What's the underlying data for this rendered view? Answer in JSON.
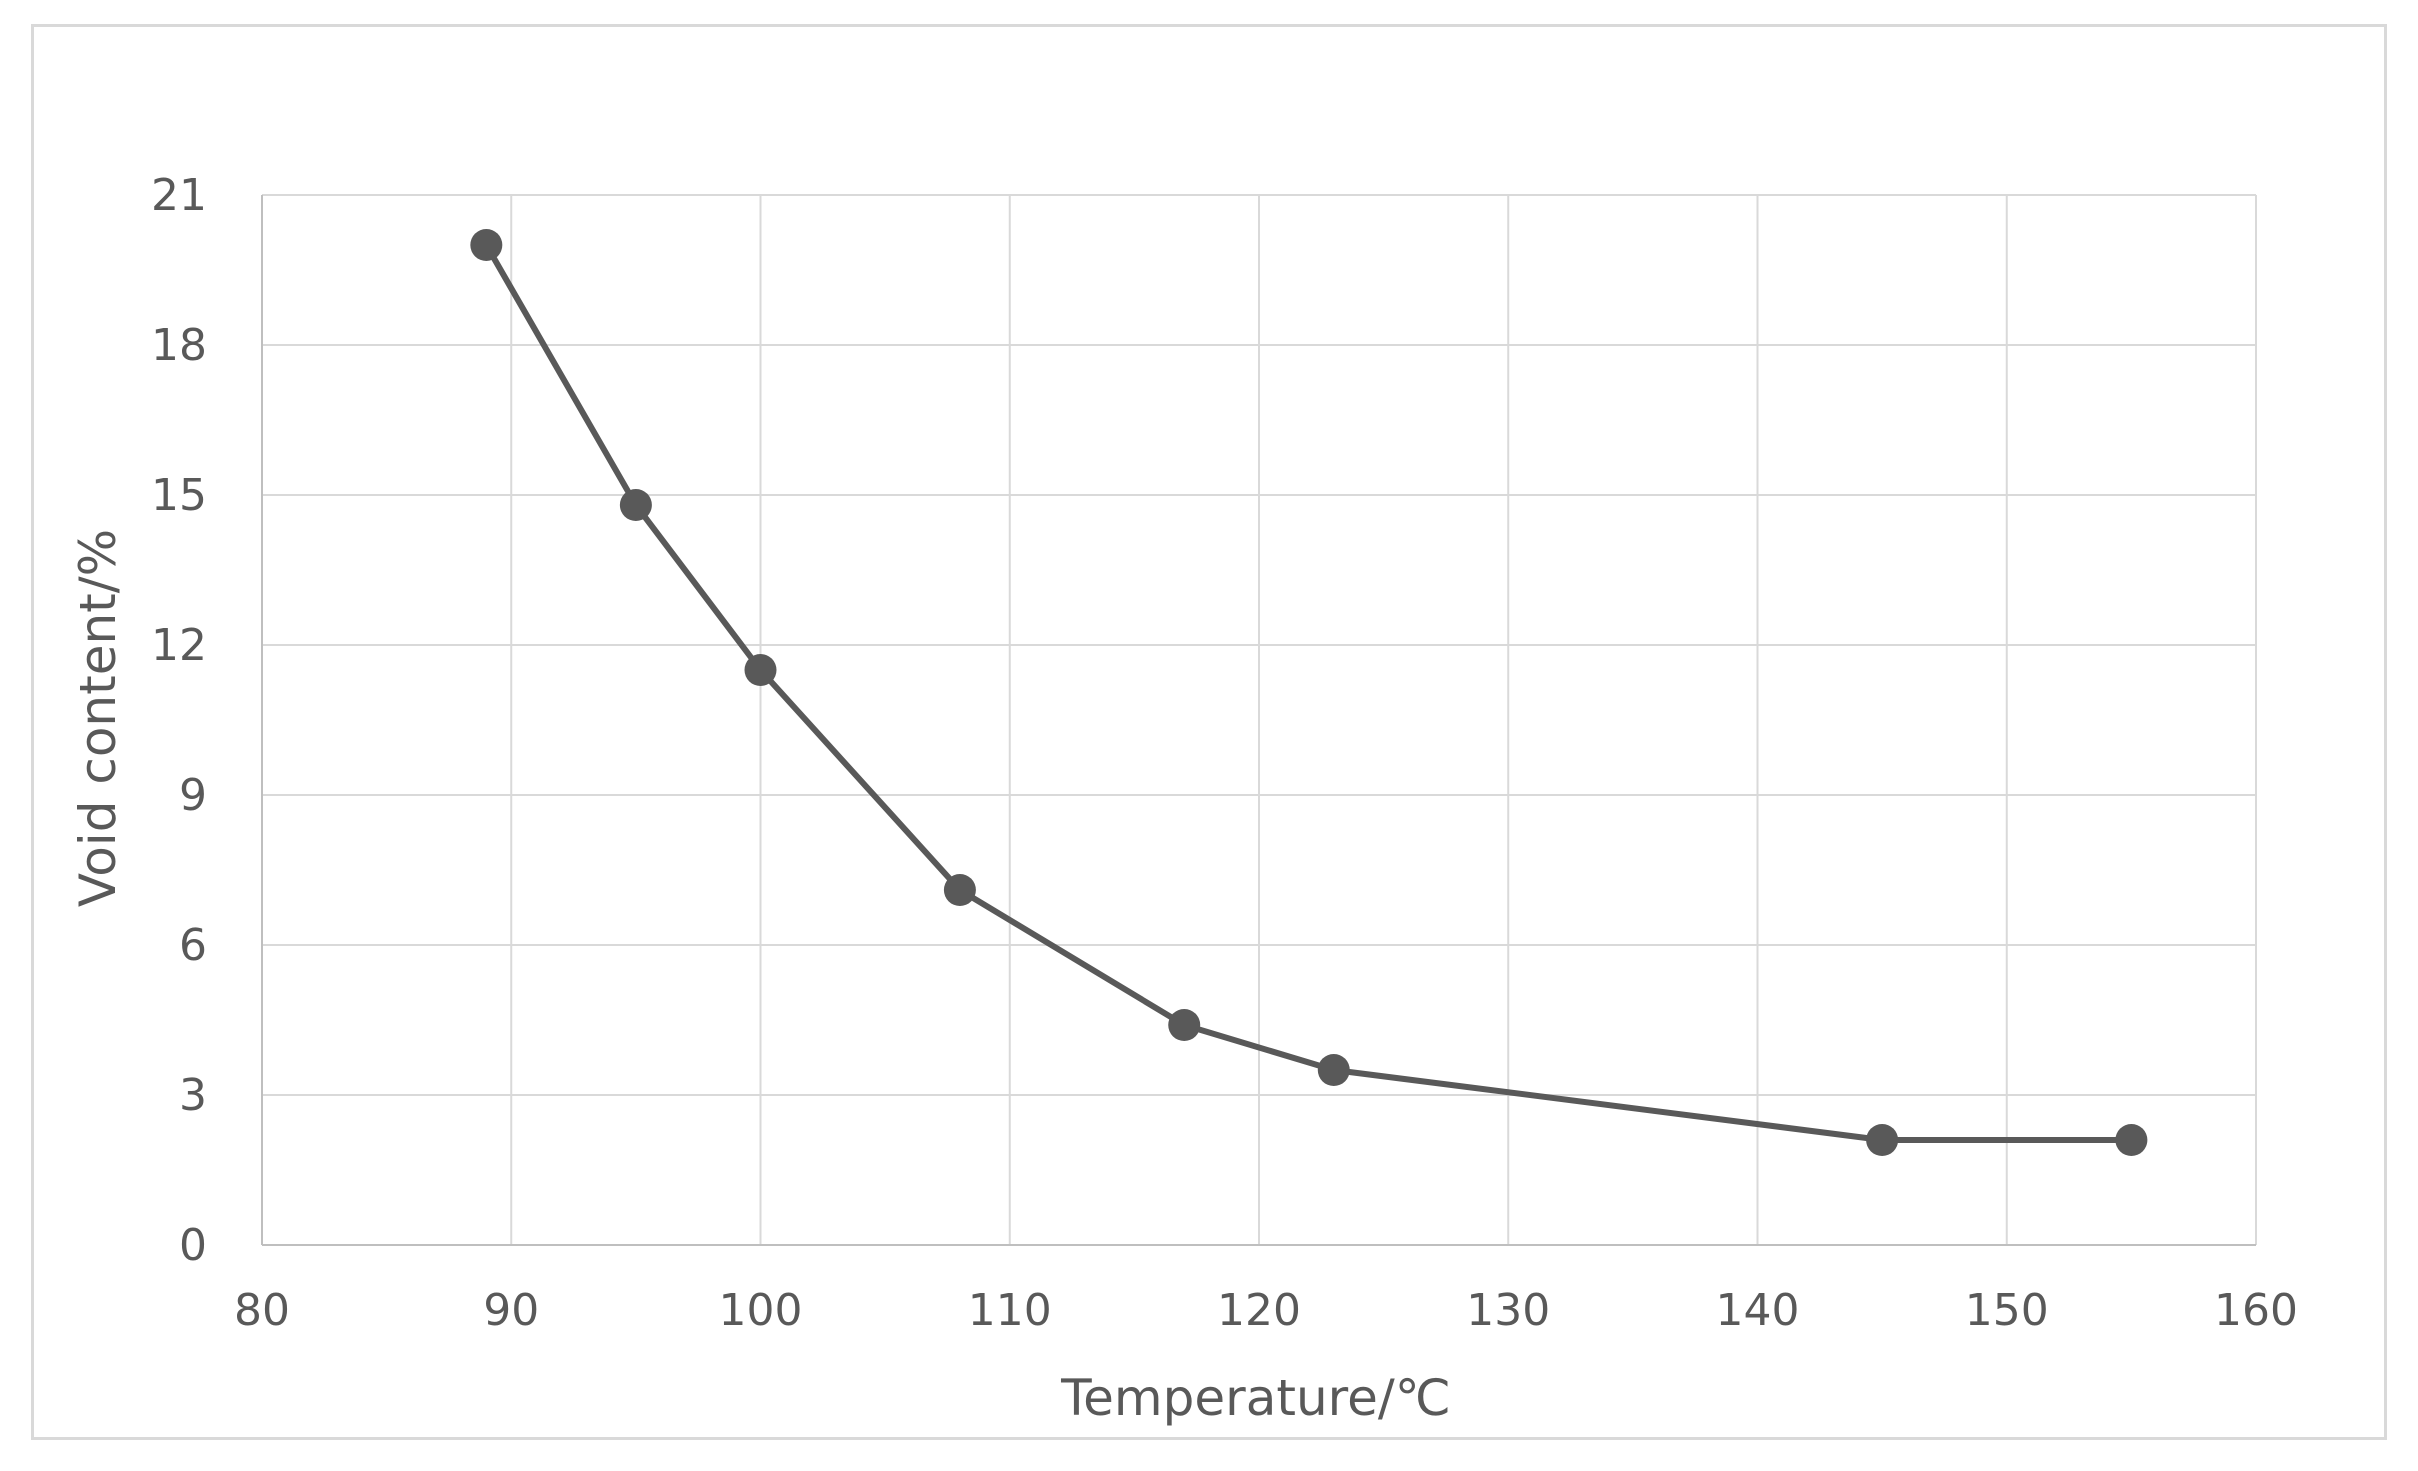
{
  "chart_data": {
    "type": "line",
    "xlabel": "Temperature/℃",
    "ylabel": "Void content/%",
    "xlim": [
      80,
      160
    ],
    "ylim": [
      0,
      21
    ],
    "x_ticks": [
      80,
      90,
      100,
      110,
      120,
      130,
      140,
      150,
      160
    ],
    "y_ticks": [
      0,
      3,
      6,
      9,
      12,
      15,
      18,
      21
    ],
    "grid": true,
    "legend": "none",
    "series": [
      {
        "x": [
          89,
          95,
          100,
          108,
          117,
          123,
          145,
          155
        ],
        "values": [
          20.0,
          14.8,
          11.5,
          7.1,
          4.4,
          3.5,
          2.1,
          2.1
        ],
        "color": "#595959"
      }
    ]
  }
}
